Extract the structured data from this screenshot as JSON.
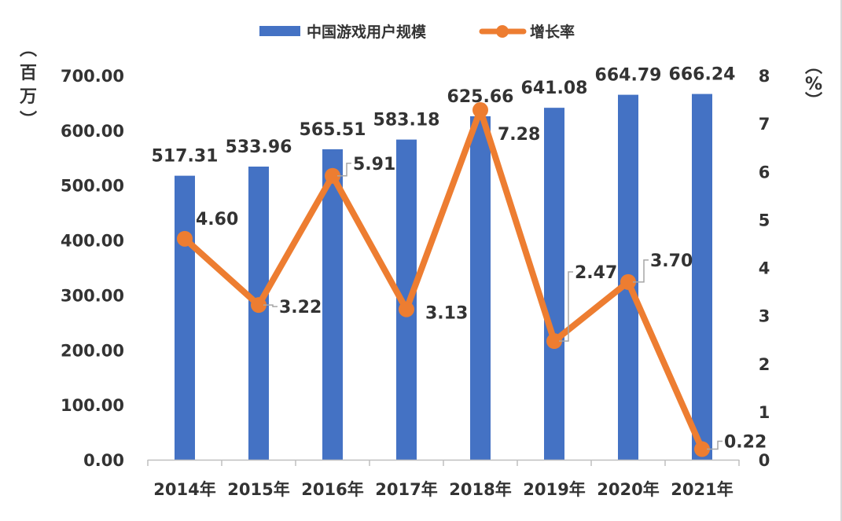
{
  "chart_data": {
    "type": "bar+line",
    "categories": [
      "2014年",
      "2015年",
      "2016年",
      "2017年",
      "2018年",
      "2019年",
      "2020年",
      "2021年"
    ],
    "series": [
      {
        "name": "中国游戏用户规模",
        "kind": "bar",
        "axis": "left",
        "color": "#4472C4",
        "values": [
          517.31,
          533.96,
          565.51,
          583.18,
          625.66,
          641.08,
          664.79,
          666.24
        ],
        "labels": [
          "517.31",
          "533.96",
          "565.51",
          "583.18",
          "625.66",
          "641.08",
          "664.79",
          "666.24"
        ]
      },
      {
        "name": "增长率",
        "kind": "line",
        "axis": "right",
        "color": "#ED7D31",
        "values": [
          4.6,
          3.22,
          5.91,
          3.13,
          7.28,
          2.47,
          3.7,
          0.22
        ],
        "labels": [
          "4.60",
          "3.22",
          "5.91",
          "3.13",
          "7.28",
          "2.47",
          "3.70",
          "0.22"
        ]
      }
    ],
    "y_left": {
      "label": "（百万）",
      "ylim": [
        0,
        700
      ],
      "ticks": [
        "0.00",
        "100.00",
        "200.00",
        "300.00",
        "400.00",
        "500.00",
        "600.00",
        "700.00"
      ]
    },
    "y_right": {
      "label": "（%）",
      "ylim": [
        0,
        8
      ],
      "ticks": [
        "0",
        "1",
        "2",
        "3",
        "4",
        "5",
        "6",
        "7",
        "8"
      ]
    },
    "legend_position": "top-center",
    "grid": false
  }
}
